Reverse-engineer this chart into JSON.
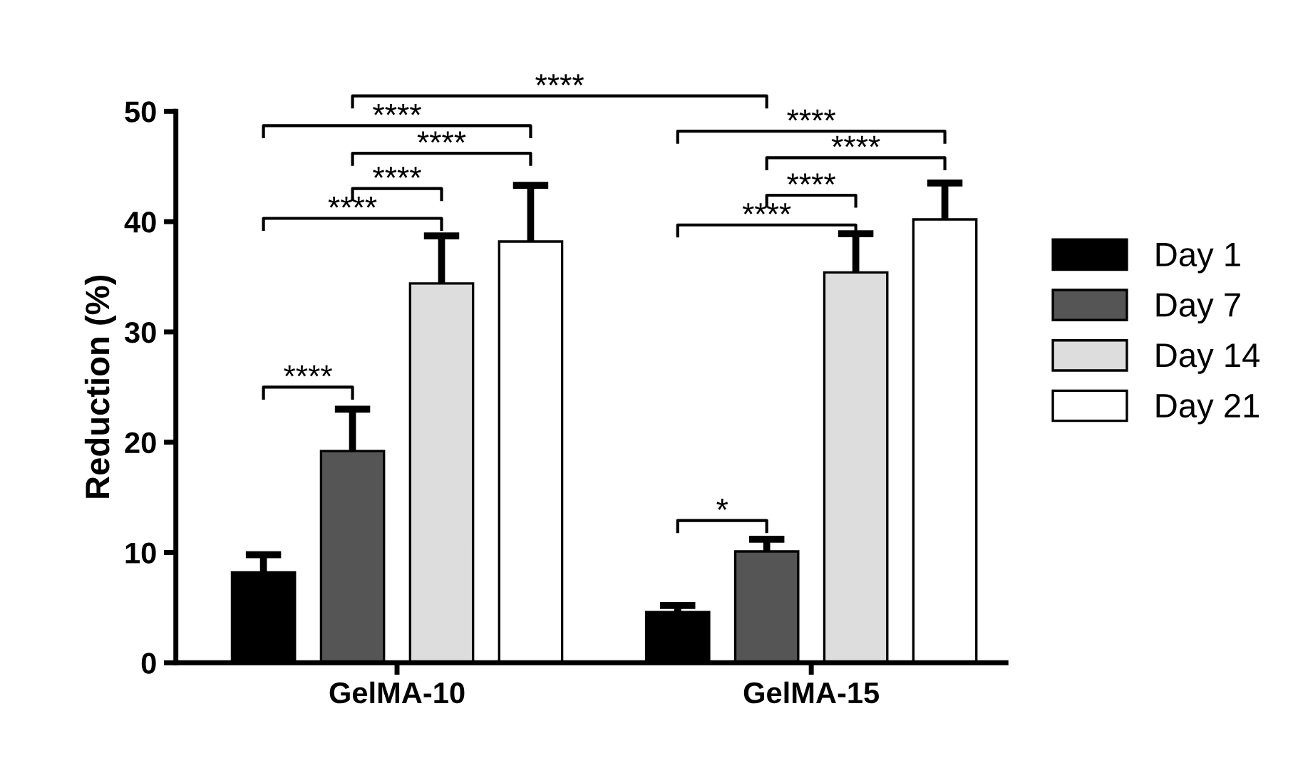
{
  "chart_data": {
    "type": "bar",
    "ylabel": "Reduction (%)",
    "categories": [
      "GelMA-10",
      "GelMA-15"
    ],
    "series": [
      {
        "name": "Day 1",
        "color": "#000000",
        "values": [
          8.2,
          4.6
        ],
        "errors": [
          [
            8.2,
            9.8
          ],
          [
            4.6,
            5.2
          ]
        ]
      },
      {
        "name": "Day 7",
        "color": "#555555",
        "values": [
          19.2,
          10.1
        ],
        "errors": [
          [
            19.2,
            23.0
          ],
          [
            10.1,
            11.2
          ]
        ]
      },
      {
        "name": "Day 14",
        "color": "#dddddd",
        "values": [
          34.4,
          35.4
        ],
        "errors": [
          [
            34.4,
            38.7
          ],
          [
            35.4,
            38.9
          ]
        ]
      },
      {
        "name": "Day 21",
        "color": "#ffffff",
        "values": [
          38.2,
          40.2
        ],
        "errors": [
          [
            38.2,
            43.3
          ],
          [
            40.2,
            43.5
          ]
        ]
      }
    ],
    "ylim": [
      0,
      50
    ],
    "yticks": [
      0,
      10,
      20,
      30,
      40,
      50
    ],
    "grid": false,
    "legend": "right",
    "annotations": [
      "****",
      "****",
      "****",
      "****",
      "****",
      "****",
      "*",
      "****",
      "****",
      "****",
      "****"
    ]
  }
}
